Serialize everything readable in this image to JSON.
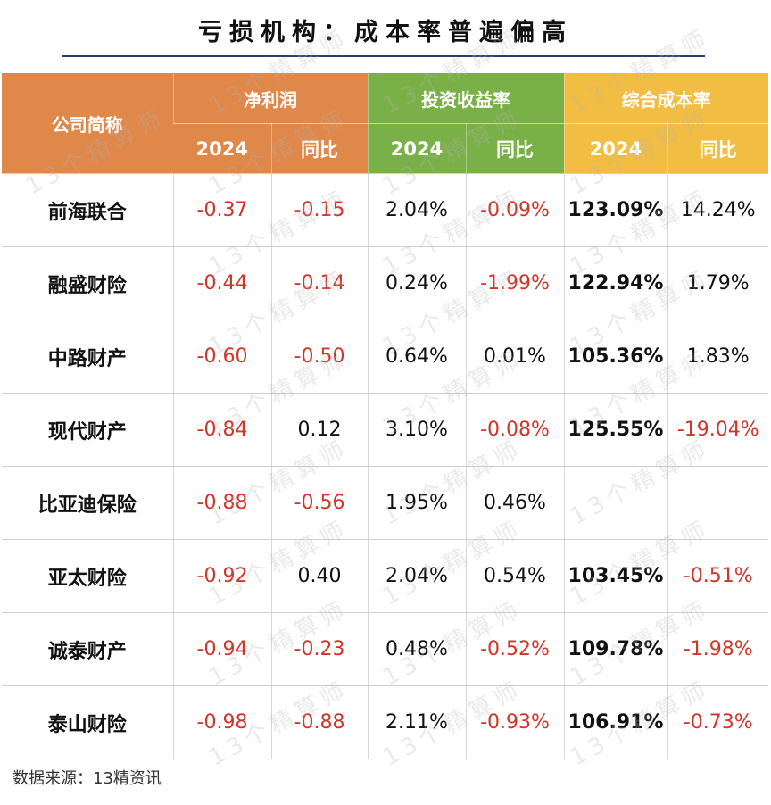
{
  "title": "亏损机构：成本率普遍偏高",
  "header": {
    "company_label": "公司简称",
    "groups": [
      "净利润",
      "投资收益率",
      "综合成本率"
    ],
    "sub_labels": [
      "2024",
      "同比",
      "2024",
      "同比",
      "2024",
      "同比"
    ]
  },
  "rows": [
    {
      "name": "前海联合",
      "cells": [
        "-0.37",
        "-0.15",
        "2.04%",
        "-0.09%",
        "123.09%",
        "14.24%"
      ]
    },
    {
      "name": "融盛财险",
      "cells": [
        "-0.44",
        "-0.14",
        "0.24%",
        "-1.99%",
        "122.94%",
        "1.79%"
      ]
    },
    {
      "name": "中路财产",
      "cells": [
        "-0.60",
        "-0.50",
        "0.64%",
        "0.01%",
        "105.36%",
        "1.83%"
      ]
    },
    {
      "name": "现代财产",
      "cells": [
        "-0.84",
        "0.12",
        "3.10%",
        "-0.08%",
        "125.55%",
        "-19.04%"
      ]
    },
    {
      "name": "比亚迪保险",
      "cells": [
        "-0.88",
        "-0.56",
        "1.95%",
        "0.46%",
        "",
        ""
      ]
    },
    {
      "name": "亚太财险",
      "cells": [
        "-0.92",
        "0.40",
        "2.04%",
        "0.54%",
        "103.45%",
        "-0.51%"
      ]
    },
    {
      "name": "诚泰财产",
      "cells": [
        "-0.94",
        "-0.23",
        "0.48%",
        "-0.52%",
        "109.78%",
        "-1.98%"
      ]
    },
    {
      "name": "泰山财险",
      "cells": [
        "-0.98",
        "-0.88",
        "2.11%",
        "-0.93%",
        "106.91%",
        "-0.73%"
      ]
    }
  ],
  "source": "数据来源：13精资讯",
  "watermark_text": "13个精算师",
  "colors": {
    "orange": "#e0874a",
    "green": "#7ab048",
    "yellow": "#f1be43",
    "negative": "#d0352a"
  }
}
